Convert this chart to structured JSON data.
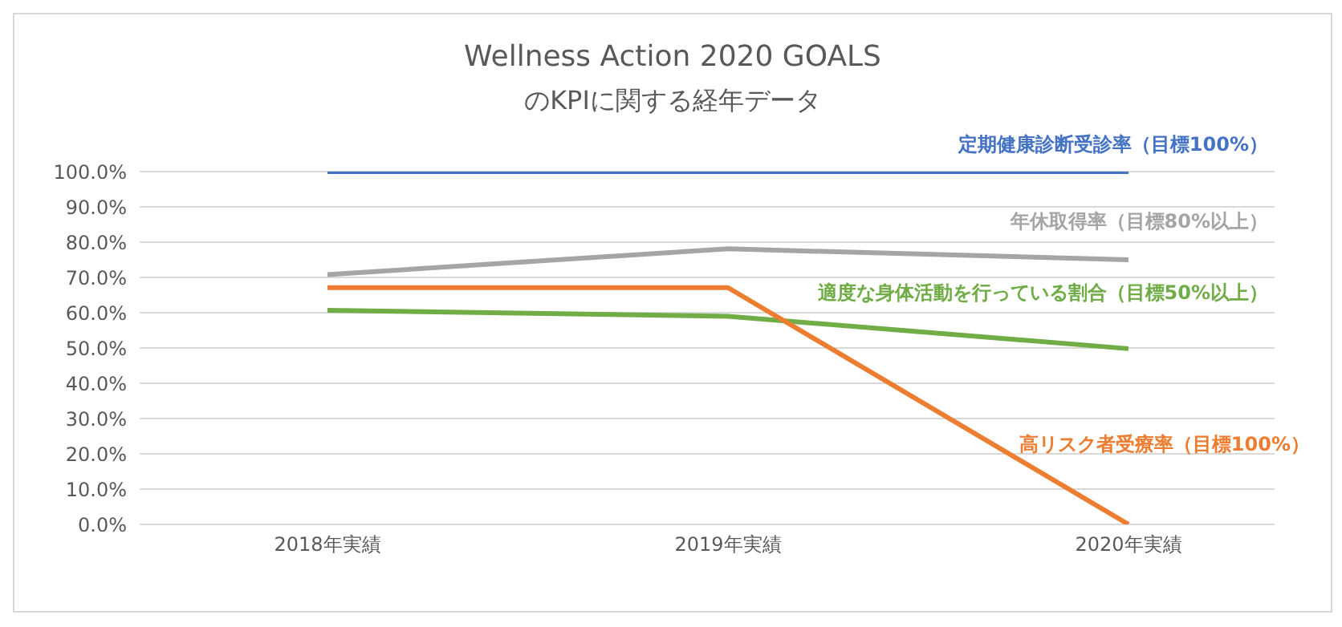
{
  "chart_data": {
    "type": "line",
    "title": "Wellness Action 2020 GOALS",
    "subtitle": "のKPIに関する経年データ",
    "categories": [
      "2018年実績",
      "2019年実績",
      "2020年実績"
    ],
    "series": [
      {
        "name": "定期健康診断受診率（目標100%）",
        "color": "#4472c4",
        "values": [
          100,
          100,
          100
        ]
      },
      {
        "name": "年休取得率（目標80%以上）",
        "color": "#a5a5a5",
        "values": [
          70.8,
          78.1,
          75.0
        ]
      },
      {
        "name": "適度な身体活動を行っている割合（目標50%以上）",
        "color": "#70ad47",
        "values": [
          60.7,
          59.0,
          49.8
        ]
      },
      {
        "name": "高リスク者受療率（目標100%）",
        "color": "#ed7d31",
        "values": [
          67.1,
          67.1,
          0
        ]
      }
    ],
    "ylim": [
      0,
      100
    ],
    "yticks": [
      {
        "value": 0,
        "label": "0.0%"
      },
      {
        "value": 10,
        "label": "10.0%"
      },
      {
        "value": 20,
        "label": "20.0%"
      },
      {
        "value": 30,
        "label": "30.0%"
      },
      {
        "value": 40,
        "label": "40.0%"
      },
      {
        "value": 50,
        "label": "50.0%"
      },
      {
        "value": 60,
        "label": "60.0%"
      },
      {
        "value": 70,
        "label": "70.0%"
      },
      {
        "value": 80,
        "label": "80.0%"
      },
      {
        "value": 90,
        "label": "90.0%"
      },
      {
        "value": 100,
        "label": "100.0%"
      }
    ],
    "grid": "y",
    "legend": false,
    "marker": "none",
    "line_style": "solid"
  }
}
